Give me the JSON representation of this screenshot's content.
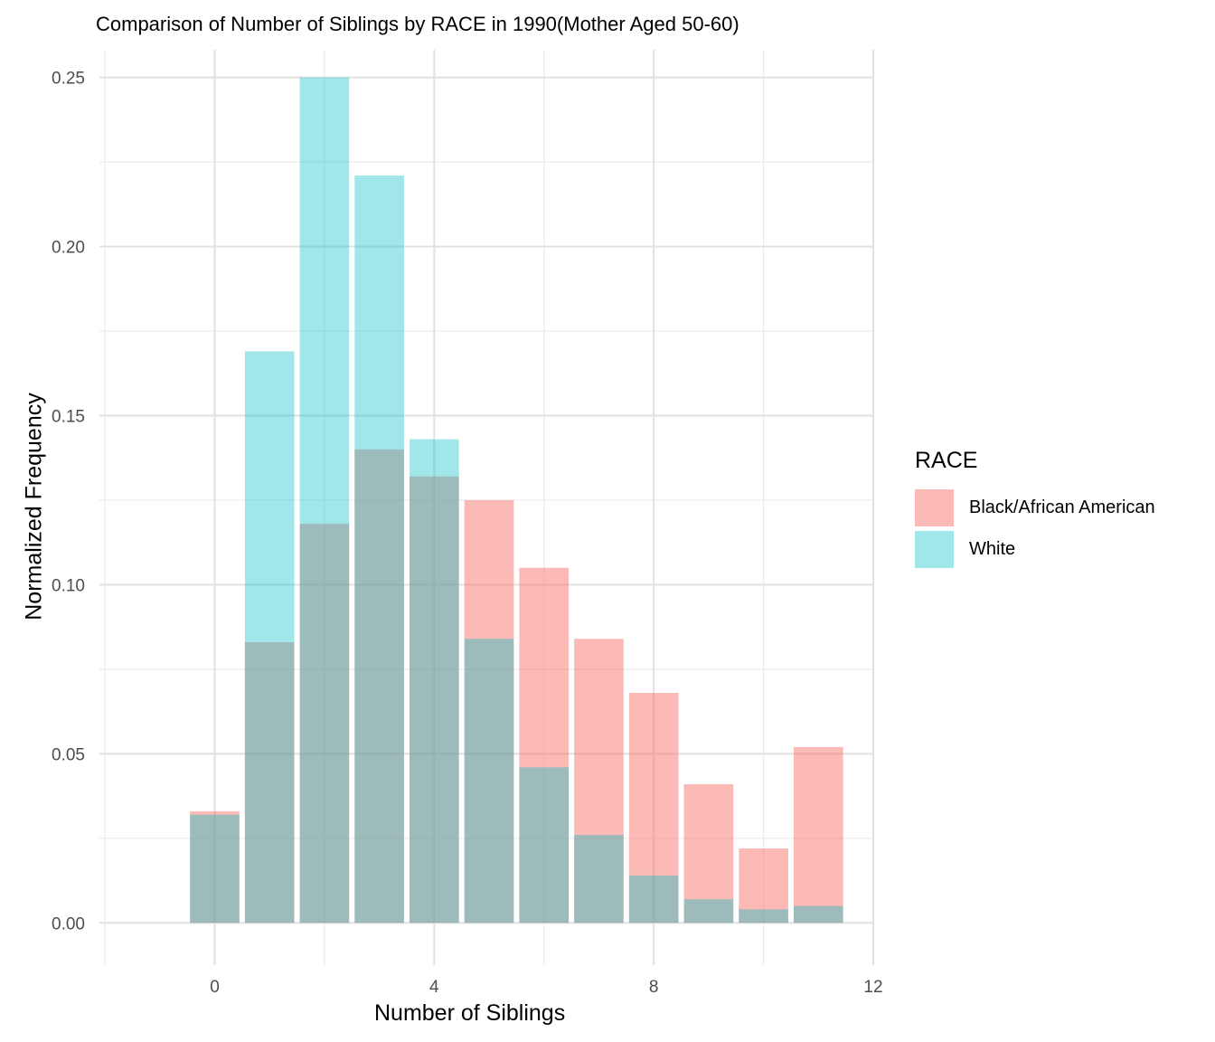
{
  "chart_data": {
    "type": "bar",
    "title": "Comparison of Number of Siblings by RACE in 1990(Mother Aged 50-60)",
    "xlabel": "Number of Siblings",
    "ylabel": "Normalized Frequency",
    "x": [
      0,
      1,
      2,
      3,
      4,
      5,
      6,
      7,
      8,
      9,
      10,
      11
    ],
    "xlim": [
      -2,
      12
    ],
    "ylim": [
      0,
      0.25
    ],
    "xticks": [
      "0",
      "4",
      "8",
      "12"
    ],
    "yticks": [
      "0.00",
      "0.05",
      "0.10",
      "0.15",
      "0.20",
      "0.25"
    ],
    "legend_title": "RACE",
    "legend_position": "right",
    "grid": true,
    "overlap": "overlaid",
    "series": [
      {
        "name": "Black/African American",
        "color": "#F8766D",
        "values": [
          0.033,
          0.083,
          0.118,
          0.14,
          0.132,
          0.125,
          0.105,
          0.084,
          0.068,
          0.041,
          0.022,
          0.052
        ]
      },
      {
        "name": "White",
        "color": "#00BFC4",
        "values": [
          0.032,
          0.169,
          0.25,
          0.221,
          0.143,
          0.084,
          0.046,
          0.026,
          0.014,
          0.007,
          0.004,
          0.005
        ]
      }
    ]
  }
}
